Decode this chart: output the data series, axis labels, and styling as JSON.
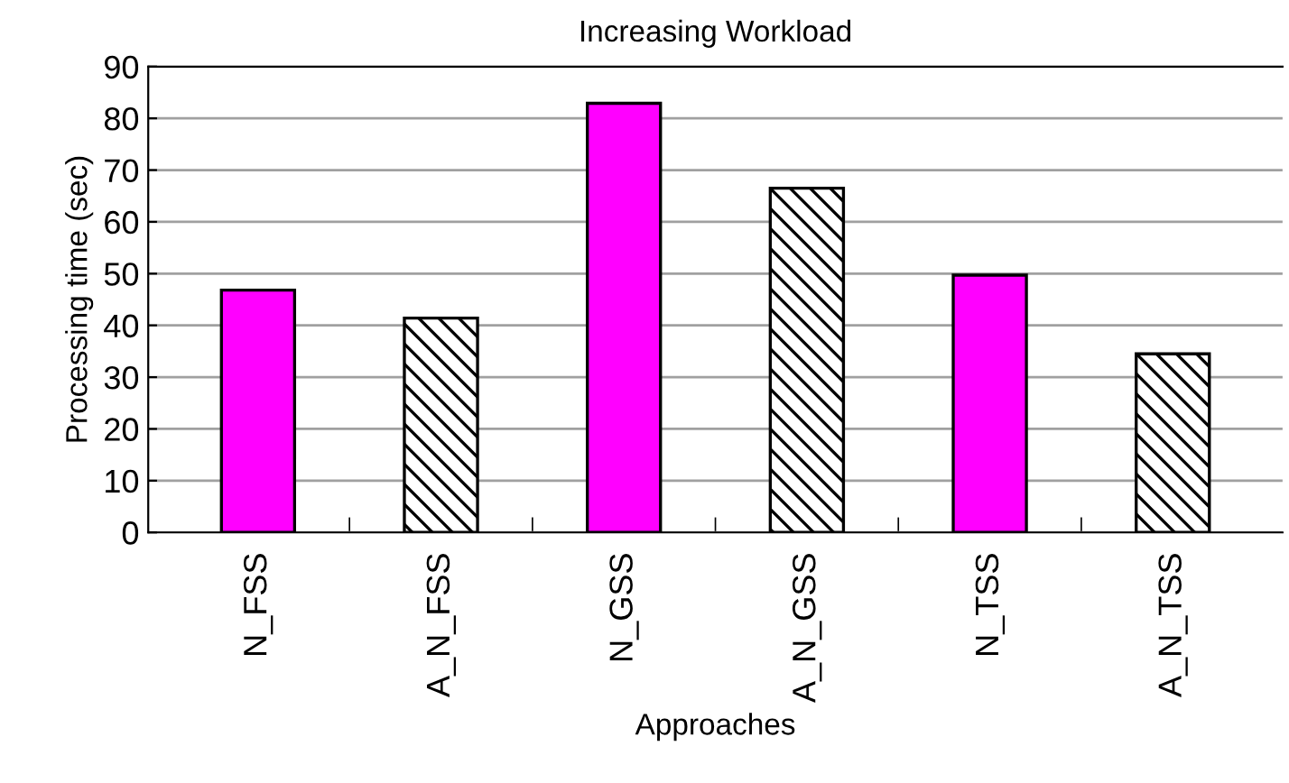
{
  "chart_data": {
    "type": "bar",
    "title": "Increasing Workload",
    "xlabel": "Approaches",
    "ylabel": "Processing time (sec)",
    "categories": [
      "N_FSS",
      "A_N_FSS",
      "N_GSS",
      "A_N_GSS",
      "N_TSS",
      "A_N_TSS"
    ],
    "values": [
      46.8,
      41.4,
      82.9,
      66.5,
      49.7,
      34.5
    ],
    "colors": [
      "#ff00ff",
      "#000000",
      "#ff00ff",
      "#000000",
      "#ff00ff",
      "#000000"
    ],
    "ylim": [
      0,
      90
    ],
    "yticks": [
      0,
      10,
      20,
      30,
      40,
      50,
      60,
      70,
      80,
      90
    ],
    "grid": "y"
  }
}
